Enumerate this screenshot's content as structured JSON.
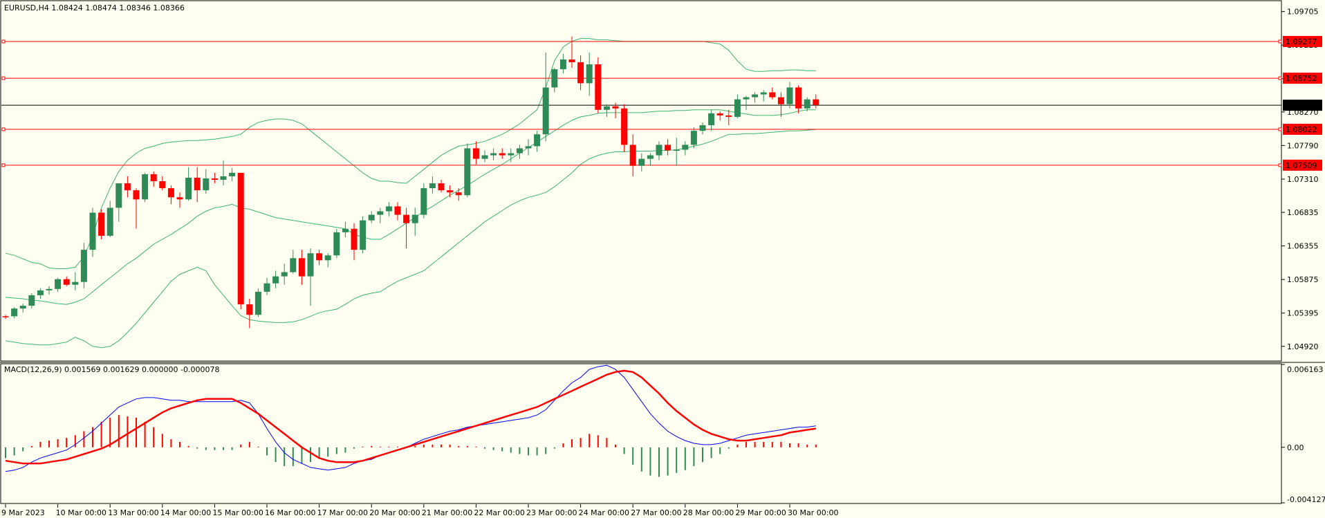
{
  "window": {
    "info_label": "EURUSD,H4  1.08424 1.08474 1.08346 1.08366",
    "macd_label": "MACD(12,26,9) 0.001569 0.001629 0.000000 -0.000078"
  },
  "colors": {
    "background": "#fefff0",
    "bull": "#2e8b57",
    "bear": "#ff0000",
    "bollinger": "#3cb371",
    "macd_line": "#0000ff",
    "signal_line": "#ff0000",
    "level_line": "#ff0000",
    "current_price": "#000000"
  },
  "chart_data": [
    {
      "type": "candlestick",
      "symbol": "EURUSD",
      "timeframe": "H4",
      "ylim": [
        1.0472,
        1.0985
      ],
      "yticks": [
        "1.09705",
        "1.09225",
        "1.08745",
        "1.08270",
        "1.07790",
        "1.07310",
        "1.06835",
        "1.06355",
        "1.05875",
        "1.05395",
        "1.04920"
      ],
      "xticks": [
        "9 Mar 2023",
        "10 Mar 00:00",
        "13 Mar 00:00",
        "14 Mar 00:00",
        "15 Mar 00:00",
        "16 Mar 00:00",
        "17 Mar 00:00",
        "20 Mar 00:00",
        "21 Mar 00:00",
        "22 Mar 00:00",
        "23 Mar 00:00",
        "24 Mar 00:00",
        "27 Mar 00:00",
        "28 Mar 00:00",
        "29 Mar 00:00",
        "30 Mar 00:00"
      ],
      "levels": [
        "1.09277",
        "1.08752",
        "1.08022",
        "1.07509"
      ],
      "current_price": "1.08366",
      "candles": [
        [
          1.0535,
          1.0537,
          1.0531,
          1.0534
        ],
        [
          1.0535,
          1.0548,
          1.0532,
          1.0546
        ],
        [
          1.0546,
          1.0553,
          1.054,
          1.055
        ],
        [
          1.055,
          1.0568,
          1.0546,
          1.0565
        ],
        [
          1.0565,
          1.0575,
          1.056,
          1.0572
        ],
        [
          1.0572,
          1.0578,
          1.0566,
          1.0574
        ],
        [
          1.0574,
          1.059,
          1.057,
          1.0588
        ],
        [
          1.0588,
          1.0592,
          1.0578,
          1.058
        ],
        [
          1.058,
          1.0598,
          1.0572,
          1.0584
        ],
        [
          1.0584,
          1.064,
          1.0575,
          1.063
        ],
        [
          1.063,
          1.069,
          1.062,
          1.0683
        ],
        [
          1.0683,
          1.0688,
          1.0645,
          1.065
        ],
        [
          1.065,
          1.07,
          1.0648,
          1.069
        ],
        [
          1.069,
          1.0725,
          1.067,
          1.0725
        ],
        [
          1.0725,
          1.0735,
          1.0705,
          1.0715
        ],
        [
          1.0715,
          1.0718,
          1.066,
          1.0702
        ],
        [
          1.0702,
          1.074,
          1.0698,
          1.0738
        ],
        [
          1.0738,
          1.0742,
          1.072,
          1.0728
        ],
        [
          1.0728,
          1.0735,
          1.0715,
          1.0718
        ],
        [
          1.0718,
          1.0722,
          1.0695,
          1.0705
        ],
        [
          1.0705,
          1.0712,
          1.069,
          1.0702
        ],
        [
          1.0702,
          1.0748,
          1.07,
          1.0733
        ],
        [
          1.0733,
          1.0748,
          1.0698,
          1.0715
        ],
        [
          1.0715,
          1.0745,
          1.071,
          1.0732
        ],
        [
          1.0732,
          1.074,
          1.0725,
          1.073
        ],
        [
          1.073,
          1.0758,
          1.0722,
          1.0735
        ],
        [
          1.0735,
          1.0747,
          1.0728,
          1.074
        ],
        [
          1.074,
          1.074,
          1.0545,
          1.0552
        ],
        [
          1.0552,
          1.056,
          1.0518,
          1.0537
        ],
        [
          1.0537,
          1.0575,
          1.0534,
          1.057
        ],
        [
          1.057,
          1.059,
          1.0565,
          1.0582
        ],
        [
          1.0582,
          1.06,
          1.0575,
          1.0592
        ],
        [
          1.0592,
          1.061,
          1.058,
          1.0598
        ],
        [
          1.0598,
          1.063,
          1.0596,
          1.0618
        ],
        [
          1.0618,
          1.063,
          1.058,
          1.0592
        ],
        [
          1.0592,
          1.0632,
          1.055,
          1.0625
        ],
        [
          1.0625,
          1.063,
          1.0608,
          1.0615
        ],
        [
          1.0615,
          1.0625,
          1.0605,
          1.0622
        ],
        [
          1.0622,
          1.066,
          1.0618,
          1.0655
        ],
        [
          1.0655,
          1.067,
          1.0648,
          1.066
        ],
        [
          1.066,
          1.0668,
          1.0615,
          1.063
        ],
        [
          1.063,
          1.0678,
          1.0625,
          1.0672
        ],
        [
          1.0672,
          1.0685,
          1.0668,
          1.068
        ],
        [
          1.068,
          1.069,
          1.0668,
          1.0685
        ],
        [
          1.0685,
          1.0698,
          1.0678,
          1.0692
        ],
        [
          1.0692,
          1.0698,
          1.0672,
          1.068
        ],
        [
          1.068,
          1.069,
          1.0632,
          1.0668
        ],
        [
          1.0668,
          1.069,
          1.065,
          1.068
        ],
        [
          1.068,
          1.0725,
          1.0675,
          1.0718
        ],
        [
          1.0718,
          1.0735,
          1.071,
          1.0725
        ],
        [
          1.0725,
          1.073,
          1.0712,
          1.0715
        ],
        [
          1.0715,
          1.0722,
          1.0705,
          1.0712
        ],
        [
          1.0712,
          1.0718,
          1.07,
          1.0708
        ],
        [
          1.0708,
          1.0782,
          1.0705,
          1.0775
        ],
        [
          1.0775,
          1.0785,
          1.0752,
          1.076
        ],
        [
          1.076,
          1.0772,
          1.0755,
          1.0765
        ],
        [
          1.0765,
          1.0775,
          1.0758,
          1.0768
        ],
        [
          1.0768,
          1.0775,
          1.076,
          1.0765
        ],
        [
          1.0765,
          1.0775,
          1.0755,
          1.0768
        ],
        [
          1.0768,
          1.078,
          1.076,
          1.0775
        ],
        [
          1.0775,
          1.0788,
          1.0765,
          1.0778
        ],
        [
          1.0778,
          1.08,
          1.077,
          1.0795
        ],
        [
          1.0795,
          1.0912,
          1.0785,
          1.0862
        ],
        [
          1.0862,
          1.089,
          1.0855,
          1.0888
        ],
        [
          1.0888,
          1.091,
          1.0882,
          1.0902
        ],
        [
          1.0902,
          1.0935,
          1.089,
          1.0898
        ],
        [
          1.0898,
          1.0908,
          1.0858,
          1.0868
        ],
        [
          1.0868,
          1.0912,
          1.085,
          1.0895
        ],
        [
          1.0895,
          1.0905,
          1.0825,
          1.083
        ],
        [
          1.083,
          1.0838,
          1.082,
          1.0835
        ],
        [
          1.0835,
          1.084,
          1.0818,
          1.0832
        ],
        [
          1.0832,
          1.0838,
          1.077,
          1.078
        ],
        [
          1.078,
          1.0795,
          1.0735,
          1.075
        ],
        [
          1.075,
          1.0768,
          1.0742,
          1.076
        ],
        [
          1.076,
          1.0768,
          1.075,
          1.0765
        ],
        [
          1.0765,
          1.0785,
          1.0758,
          1.078
        ],
        [
          1.078,
          1.0788,
          1.0765,
          1.0772
        ],
        [
          1.0772,
          1.079,
          1.075,
          1.0773
        ],
        [
          1.0773,
          1.0785,
          1.0765,
          1.078
        ],
        [
          1.078,
          1.0805,
          1.0775,
          1.08
        ],
        [
          1.08,
          1.0812,
          1.0795,
          1.0808
        ],
        [
          1.0808,
          1.083,
          1.08,
          1.0825
        ],
        [
          1.0825,
          1.0828,
          1.0815,
          1.0822
        ],
        [
          1.0822,
          1.083,
          1.0808,
          1.082
        ],
        [
          1.082,
          1.0852,
          1.0818,
          1.0845
        ],
        [
          1.0845,
          1.085,
          1.083,
          1.0848
        ],
        [
          1.0848,
          1.0855,
          1.084,
          1.0852
        ],
        [
          1.0852,
          1.0858,
          1.0842,
          1.0855
        ],
        [
          1.0855,
          1.0862,
          1.0845,
          1.0848
        ],
        [
          1.0848,
          1.0855,
          1.082,
          1.0838
        ],
        [
          1.0838,
          1.087,
          1.0832,
          1.0862
        ],
        [
          1.0862,
          1.0865,
          1.0825,
          1.0832
        ],
        [
          1.0832,
          1.0848,
          1.0828,
          1.0845
        ],
        [
          1.0845,
          1.0852,
          1.0832,
          1.0837
        ]
      ],
      "bollinger": {
        "upper": [
          1.0625,
          1.0622,
          1.0617,
          1.0612,
          1.061,
          1.0604,
          1.0603,
          1.0603,
          1.0605,
          1.062,
          1.065,
          1.069,
          1.0718,
          1.0742,
          1.0758,
          1.0768,
          1.0775,
          1.0778,
          1.0782,
          1.0784,
          1.0785,
          1.0786,
          1.0786,
          1.0787,
          1.0788,
          1.079,
          1.0792,
          1.0795,
          1.0805,
          1.0812,
          1.0815,
          1.0817,
          1.0817,
          1.0815,
          1.081,
          1.08,
          1.079,
          1.078,
          1.077,
          1.076,
          1.075,
          1.074,
          1.0732,
          1.0728,
          1.0728,
          1.0726,
          1.0725,
          1.0735,
          1.0745,
          1.0755,
          1.0765,
          1.0772,
          1.0778,
          1.078,
          1.0782,
          1.0785,
          1.079,
          1.0795,
          1.0802,
          1.081,
          1.082,
          1.083,
          1.0862,
          1.09,
          1.092,
          1.0928,
          1.0932,
          1.0932,
          1.093,
          1.093,
          1.0929,
          1.0928,
          1.0928,
          1.0928,
          1.0928,
          1.0928,
          1.0928,
          1.0928,
          1.0928,
          1.0928,
          1.0928,
          1.0926,
          1.0924,
          1.0915,
          1.09,
          1.0888,
          1.0885,
          1.0885,
          1.0886,
          1.0886,
          1.0887,
          1.0887,
          1.0886,
          1.0886
        ],
        "middle": [
          1.0562,
          1.0561,
          1.056,
          1.0558,
          1.0557,
          1.0555,
          1.0553,
          1.0552,
          1.0555,
          1.056,
          1.057,
          1.058,
          1.059,
          1.06,
          1.061,
          1.0618,
          1.0628,
          1.0638,
          1.0645,
          1.0652,
          1.066,
          1.0668,
          1.0678,
          1.0685,
          1.069,
          1.0692,
          1.0695,
          1.069,
          1.0688,
          1.0684,
          1.068,
          1.0676,
          1.0674,
          1.0672,
          1.067,
          1.0668,
          1.0666,
          1.0664,
          1.0662,
          1.066,
          1.0652,
          1.0648,
          1.0645,
          1.0645,
          1.0652,
          1.066,
          1.0668,
          1.0676,
          1.0685,
          1.0692,
          1.07,
          1.0708,
          1.0715,
          1.0722,
          1.073,
          1.0738,
          1.0745,
          1.0752,
          1.076,
          1.0768,
          1.0776,
          1.0784,
          1.0792,
          1.08,
          1.0808,
          1.0815,
          1.082,
          1.0822,
          1.0825,
          1.0826,
          1.0826,
          1.0826,
          1.0826,
          1.0826,
          1.0827,
          1.0828,
          1.0828,
          1.0829,
          1.0829,
          1.083,
          1.083,
          1.083,
          1.083,
          1.0828,
          1.0826,
          1.0824,
          1.0822,
          1.0822,
          1.0822,
          1.0823,
          1.0825,
          1.0828,
          1.083,
          1.083
        ],
        "lower": [
          1.05,
          1.0498,
          1.0496,
          1.0495,
          1.0494,
          1.0494,
          1.0496,
          1.0498,
          1.0505,
          1.05,
          1.0492,
          1.049,
          1.0492,
          1.05,
          1.0512,
          1.0525,
          1.054,
          1.0555,
          1.057,
          1.0585,
          1.0595,
          1.06,
          1.0605,
          1.06,
          1.058,
          1.0565,
          1.055,
          1.0536,
          1.053,
          1.0528,
          1.0527,
          1.0526,
          1.0526,
          1.0527,
          1.053,
          1.0535,
          1.054,
          1.0543,
          1.0545,
          1.0552,
          1.056,
          1.0565,
          1.0568,
          1.057,
          1.0578,
          1.0585,
          1.059,
          1.0595,
          1.06,
          1.061,
          1.062,
          1.063,
          1.064,
          1.065,
          1.066,
          1.067,
          1.0678,
          1.0686,
          1.0694,
          1.07,
          1.0705,
          1.0708,
          1.0712,
          1.072,
          1.073,
          1.074,
          1.0752,
          1.076,
          1.0765,
          1.0768,
          1.077,
          1.077,
          1.0771,
          1.0771,
          1.0771,
          1.0772,
          1.0772,
          1.0773,
          1.0775,
          1.0778,
          1.0781,
          1.0785,
          1.079,
          1.0795,
          1.0795,
          1.0796,
          1.0796,
          1.0797,
          1.0798,
          1.0799,
          1.08,
          1.08,
          1.0801,
          1.0802
        ]
      }
    },
    {
      "type": "macd",
      "ylim": [
        -0.004127,
        0.006163
      ],
      "yticks": [
        "0.006163",
        "0.00",
        "-0.004127"
      ],
      "params": "12,26,9",
      "macd": [
        -0.0018,
        -0.0017,
        -0.0015,
        -0.0011,
        -0.0008,
        -0.0006,
        -0.0004,
        -0.0002,
        0.0002,
        0.0007,
        0.0012,
        0.0018,
        0.0024,
        0.003,
        0.0033,
        0.0036,
        0.0037,
        0.0037,
        0.0036,
        0.0035,
        0.0035,
        0.0034,
        0.0034,
        0.0034,
        0.0034,
        0.0034,
        0.0034,
        0.0035,
        0.0033,
        0.0025,
        0.0014,
        0.0004,
        -0.0004,
        -0.0009,
        -0.0012,
        -0.0015,
        -0.0016,
        -0.0017,
        -0.0016,
        -0.0015,
        -0.0012,
        -0.001,
        -0.0009,
        -0.0006,
        -0.0004,
        -0.0002,
        0.0,
        0.0003,
        0.0006,
        0.0008,
        0.001,
        0.0012,
        0.0013,
        0.0015,
        0.0016,
        0.0017,
        0.0018,
        0.0019,
        0.002,
        0.0021,
        0.0022,
        0.0024,
        0.0028,
        0.0035,
        0.0042,
        0.0048,
        0.0052,
        0.0058,
        0.006,
        0.0061,
        0.0058,
        0.0052,
        0.0043,
        0.0034,
        0.0025,
        0.0018,
        0.0012,
        0.0008,
        0.0005,
        0.0003,
        0.0002,
        0.0002,
        0.0003,
        0.0005,
        0.0007,
        0.0009,
        0.001,
        0.0011,
        0.0012,
        0.0013,
        0.0014,
        0.0015,
        0.0015,
        0.0016
      ],
      "signal": [
        -0.001,
        -0.0011,
        -0.0012,
        -0.0012,
        -0.0012,
        -0.0011,
        -0.001,
        -0.0009,
        -0.0007,
        -0.0005,
        -0.0003,
        -0.0001,
        0.0002,
        0.0006,
        0.001,
        0.0014,
        0.0018,
        0.0022,
        0.0026,
        0.0029,
        0.0031,
        0.0033,
        0.0035,
        0.0036,
        0.0036,
        0.0036,
        0.0036,
        0.0033,
        0.0029,
        0.0025,
        0.002,
        0.0015,
        0.001,
        0.0005,
        0.0,
        -0.0004,
        -0.0008,
        -0.001,
        -0.0011,
        -0.0011,
        -0.0011,
        -0.001,
        -0.0008,
        -0.0006,
        -0.0004,
        -0.0002,
        0.0,
        0.0002,
        0.0004,
        0.0006,
        0.0008,
        0.001,
        0.0012,
        0.0014,
        0.0016,
        0.0018,
        0.002,
        0.0022,
        0.0024,
        0.0026,
        0.0028,
        0.003,
        0.0033,
        0.0036,
        0.0039,
        0.0042,
        0.0045,
        0.0048,
        0.0051,
        0.0054,
        0.0056,
        0.0057,
        0.0056,
        0.0052,
        0.0046,
        0.004,
        0.0033,
        0.0027,
        0.0022,
        0.0017,
        0.0013,
        0.001,
        0.0008,
        0.0006,
        0.0005,
        0.0005,
        0.0006,
        0.0007,
        0.0008,
        0.0009,
        0.0011,
        0.0012,
        0.0013,
        0.0014
      ],
      "histogram": [
        -0.0008,
        -0.0006,
        -0.0003,
        0.0001,
        0.0004,
        0.0005,
        0.0006,
        0.0007,
        0.0009,
        0.0012,
        0.0015,
        0.0019,
        0.0022,
        0.0024,
        0.0023,
        0.0022,
        0.0019,
        0.0015,
        0.001,
        0.0006,
        0.0004,
        0.0001,
        -0.0001,
        -0.0002,
        -0.0002,
        -0.0002,
        -0.0002,
        0.0002,
        0.0004,
        0.0,
        -0.0006,
        -0.0011,
        -0.0014,
        -0.0014,
        -0.0012,
        -0.0011,
        -0.0008,
        -0.0007,
        -0.0005,
        -0.0004,
        -0.0001,
        0.0,
        0.0001,
        0.0,
        0.0,
        0.0,
        0.0,
        0.0001,
        0.0002,
        0.0002,
        0.0002,
        0.0002,
        0.0001,
        0.0001,
        0.0,
        -0.0001,
        -0.0002,
        -0.0003,
        -0.0004,
        -0.0005,
        -0.0006,
        -0.0006,
        -0.0005,
        -0.0001,
        0.0003,
        0.0006,
        0.0007,
        0.001,
        0.0009,
        0.0007,
        0.0002,
        -0.0005,
        -0.0013,
        -0.0018,
        -0.0021,
        -0.0022,
        -0.0021,
        -0.0019,
        -0.0017,
        -0.0014,
        -0.0011,
        -0.0008,
        -0.0005,
        -0.0001,
        0.0002,
        0.0004,
        0.0004,
        0.0004,
        0.0004,
        0.0004,
        0.0003,
        0.0003,
        0.0002,
        0.0002
      ]
    }
  ]
}
